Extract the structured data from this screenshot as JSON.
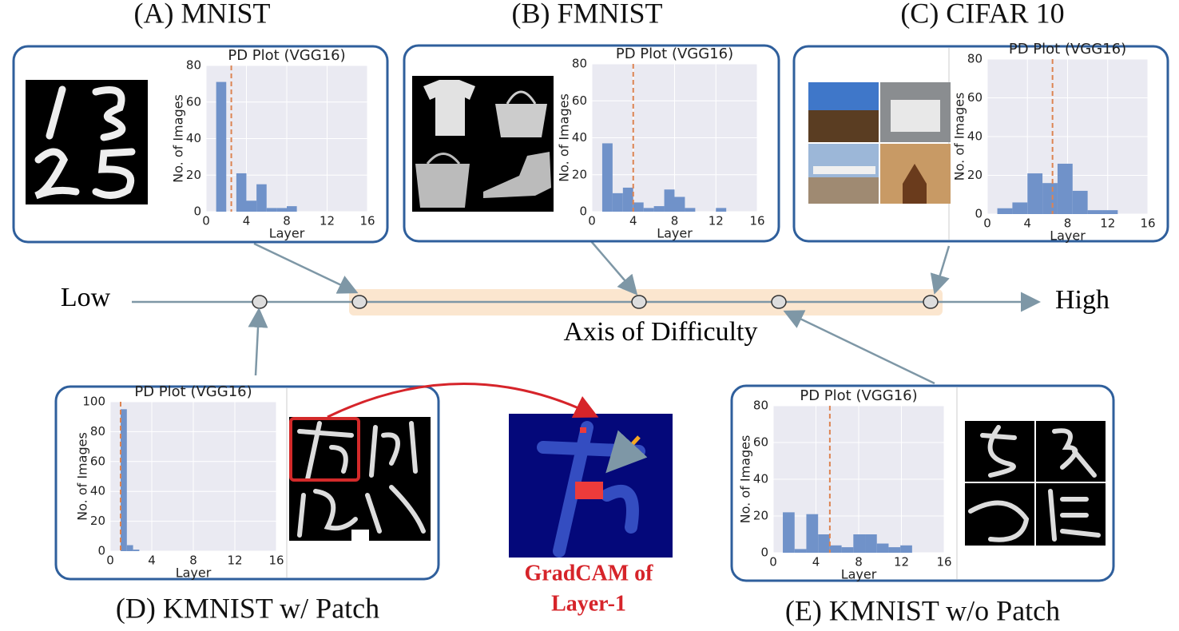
{
  "chart_data": [
    {
      "type": "histogram",
      "caption": "(A) MNIST",
      "title": "PD Plot (VGG16)",
      "xlabel": "Layer",
      "ylabel": "No. of Images",
      "bins": [
        1,
        2,
        3,
        4,
        5,
        6,
        7,
        8,
        9
      ],
      "values": [
        71,
        0,
        21,
        6,
        15,
        2,
        2,
        3
      ],
      "color": "#7092c9",
      "vline": 2.5,
      "vline_color": "#dd8452",
      "xlim": [
        0,
        16
      ],
      "ylim": [
        0,
        80
      ],
      "xticks": [
        0,
        4,
        8,
        12,
        16
      ],
      "yticks": [
        0,
        20,
        40,
        60,
        80
      ],
      "grid": true
    },
    {
      "type": "histogram",
      "caption": "(B) FMNIST",
      "title": "PD Plot (VGG16)",
      "xlabel": "Layer",
      "ylabel": "No. of Images",
      "bins": [
        1,
        2,
        3,
        4,
        5,
        6,
        7,
        8,
        9,
        10,
        11,
        12,
        13
      ],
      "values": [
        37,
        10,
        13,
        5,
        2,
        3,
        12,
        8,
        2,
        0,
        0,
        2
      ],
      "color": "#7092c9",
      "vline": 4,
      "vline_color": "#dd8452",
      "xlim": [
        0,
        16
      ],
      "ylim": [
        0,
        80
      ],
      "xticks": [
        0,
        4,
        8,
        12,
        16
      ],
      "yticks": [
        0,
        20,
        40,
        60,
        80
      ],
      "grid": true
    },
    {
      "type": "histogram",
      "caption": "(C) CIFAR 10",
      "title": "PD Plot (VGG16)",
      "xlabel": "Layer",
      "ylabel": "No. of Images",
      "bins": [
        1,
        2.5,
        4,
        5.5,
        7,
        8.5,
        10,
        11.5,
        13
      ],
      "values": [
        3,
        6,
        21,
        16,
        26,
        12,
        2,
        2
      ],
      "color": "#7092c9",
      "vline": 6.5,
      "vline_color": "#dd8452",
      "xlim": [
        0,
        16
      ],
      "ylim": [
        0,
        80
      ],
      "xticks": [
        0,
        4,
        8,
        12,
        16
      ],
      "yticks": [
        0,
        20,
        40,
        60,
        80
      ],
      "grid": true
    },
    {
      "type": "histogram",
      "caption": "(D) KMNIST w/ Patch",
      "title": "PD Plot (VGG16)",
      "xlabel": "Layer",
      "ylabel": "No. of Images",
      "bins": [
        1,
        1.6,
        2.2,
        2.8
      ],
      "values": [
        95,
        4,
        1
      ],
      "color": "#7092c9",
      "vline": 1,
      "vline_color": "#dd8452",
      "xlim": [
        0,
        16
      ],
      "ylim": [
        0,
        100
      ],
      "xticks": [
        0,
        4,
        8,
        12,
        16
      ],
      "yticks": [
        0,
        20,
        40,
        60,
        80,
        100
      ],
      "grid": true
    },
    {
      "type": "histogram",
      "caption": "(E) KMNIST w/o Patch",
      "title": "PD Plot (VGG16)",
      "xlabel": "Layer",
      "ylabel": "No. of Images",
      "bins": [
        0.9,
        2,
        3.1,
        4.2,
        5.3,
        6.4,
        7.5,
        8.6,
        9.7,
        10.8,
        11.9,
        13
      ],
      "values": [
        22,
        2,
        21,
        10,
        4,
        3,
        10,
        10,
        5,
        3,
        4
      ],
      "color": "#7092c9",
      "vline": 5.3,
      "vline_color": "#dd8452",
      "xlim": [
        0,
        16
      ],
      "ylim": [
        0,
        80
      ],
      "xticks": [
        0,
        4,
        8,
        12,
        16
      ],
      "yticks": [
        0,
        20,
        40,
        60,
        80
      ],
      "grid": true
    }
  ],
  "axis": {
    "low": "Low",
    "high": "High",
    "label": "Axis of Difficulty"
  },
  "gradcam": [
    "GradCAM of",
    "Layer-1"
  ]
}
